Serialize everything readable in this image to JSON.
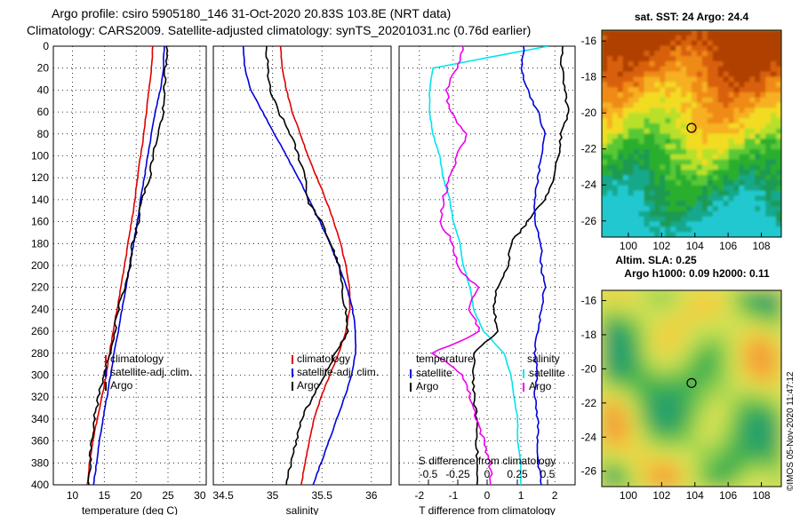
{
  "header": {
    "title_line1": "Argo profile: csiro 5905180_146 31-Oct-2020 20.83S 103.8E (NRT data)",
    "title_line2": "Climatology: CARS2009. Satellite-adjusted climatology: synTS_20201031.nc (0.76d earlier)"
  },
  "stamp": "©IMOS 05-Nov-2020 11:47:12",
  "colors": {
    "climatology": "#e00000",
    "satellite": "#0000dd",
    "argo": "#000000",
    "cyan": "#00e5ee",
    "magenta": "#ee00ee"
  },
  "chart_data": [
    {
      "type": "line",
      "name": "temperature-profile",
      "xlabel": "temperature (deg C)",
      "ylabel": "",
      "xlim": [
        7,
        31
      ],
      "ylim": [
        400,
        0
      ],
      "x_ticks": [
        10,
        15,
        20,
        25,
        30
      ],
      "y_ticks": [
        0,
        20,
        40,
        60,
        80,
        100,
        120,
        140,
        160,
        180,
        200,
        220,
        240,
        260,
        280,
        300,
        320,
        340,
        360,
        380,
        400
      ],
      "legend": [
        "climatology",
        "satellite-adj. clim.",
        "Argo"
      ],
      "series": [
        {
          "name": "climatology",
          "color": "#e00000",
          "x": [
            22.6,
            22.4,
            22.0,
            21.6,
            21.2,
            20.7,
            20.2,
            19.8,
            19.3,
            18.7,
            18.2,
            17.6,
            17.0,
            16.4,
            15.8,
            15.3,
            14.6,
            13.9,
            13.2,
            12.7,
            12.3
          ],
          "y": [
            0,
            20,
            40,
            60,
            80,
            100,
            120,
            140,
            160,
            180,
            200,
            220,
            240,
            260,
            280,
            300,
            320,
            340,
            360,
            380,
            400
          ]
        },
        {
          "name": "satellite-adj. clim.",
          "color": "#0000dd",
          "x": [
            24.4,
            24.3,
            23.8,
            23.0,
            22.4,
            21.8,
            21.3,
            20.7,
            20.2,
            19.6,
            19.0,
            18.4,
            17.8,
            17.2,
            16.5,
            16.0,
            15.4,
            14.8,
            14.2,
            13.8,
            13.3
          ],
          "y": [
            0,
            20,
            40,
            60,
            80,
            100,
            120,
            140,
            160,
            180,
            200,
            220,
            240,
            260,
            280,
            300,
            320,
            340,
            360,
            380,
            400
          ]
        },
        {
          "name": "Argo",
          "color": "#000000",
          "x": [
            24.8,
            24.6,
            24.4,
            24.2,
            23.6,
            22.6,
            22.2,
            20.8,
            20.4,
            19.4,
            19.0,
            18.2,
            17.2,
            16.6,
            15.8,
            14.9,
            14.1,
            13.4,
            13.0,
            12.8,
            12.6
          ],
          "y": [
            0,
            20,
            40,
            60,
            80,
            100,
            120,
            140,
            160,
            180,
            200,
            220,
            240,
            260,
            280,
            300,
            320,
            340,
            360,
            380,
            400
          ]
        }
      ]
    },
    {
      "type": "line",
      "name": "salinity-profile",
      "xlabel": "salinity",
      "xlim": [
        34.4,
        36.2
      ],
      "ylim": [
        400,
        0
      ],
      "x_ticks": [
        34.5,
        35,
        35.5,
        36
      ],
      "x_tick_labels": [
        "34.5",
        "35",
        "35.5",
        "36"
      ],
      "legend": [
        "climatology",
        "satellite-adj. clim.",
        "Argo"
      ],
      "series": [
        {
          "name": "climatology",
          "color": "#e00000",
          "x": [
            35.08,
            35.1,
            35.14,
            35.2,
            35.28,
            35.36,
            35.45,
            35.54,
            35.62,
            35.69,
            35.74,
            35.78,
            35.78,
            35.74,
            35.67,
            35.58,
            35.49,
            35.42,
            35.37,
            35.33,
            35.29
          ],
          "y": [
            0,
            20,
            40,
            60,
            80,
            100,
            120,
            140,
            160,
            180,
            200,
            220,
            240,
            260,
            280,
            300,
            320,
            340,
            360,
            380,
            400
          ]
        },
        {
          "name": "satellite-adj. clim.",
          "color": "#0000dd",
          "x": [
            34.7,
            34.72,
            34.78,
            34.9,
            35.02,
            35.14,
            35.26,
            35.37,
            35.48,
            35.58,
            35.67,
            35.75,
            35.81,
            35.84,
            35.84,
            35.8,
            35.73,
            35.65,
            35.57,
            35.49,
            35.41
          ],
          "y": [
            0,
            20,
            40,
            60,
            80,
            100,
            120,
            140,
            160,
            180,
            200,
            220,
            240,
            260,
            280,
            300,
            320,
            340,
            360,
            380,
            400
          ]
        },
        {
          "name": "Argo",
          "color": "#000000",
          "x": [
            34.93,
            34.95,
            34.97,
            35.06,
            35.18,
            35.26,
            35.34,
            35.35,
            35.49,
            35.59,
            35.67,
            35.7,
            35.74,
            35.76,
            35.64,
            35.52,
            35.4,
            35.3,
            35.24,
            35.19,
            35.14
          ],
          "y": [
            0,
            20,
            40,
            60,
            80,
            100,
            120,
            140,
            160,
            180,
            200,
            220,
            240,
            260,
            280,
            300,
            320,
            340,
            360,
            380,
            400
          ]
        }
      ]
    },
    {
      "type": "line",
      "name": "difference-profile",
      "xlabel": "T difference from climatology",
      "xlabel_top": "S difference from climatology",
      "xlim": [
        -2.6,
        2.6
      ],
      "ylim": [
        400,
        0
      ],
      "x_ticks": [
        -2,
        -1,
        0,
        1,
        2
      ],
      "x_tick_labels": [
        "-2",
        "-1",
        "0",
        "1",
        "2"
      ],
      "s_ticks": [
        -0.5,
        -0.25,
        0,
        0.25,
        0.5
      ],
      "s_tick_labels": [
        "-0.5",
        "-0.25",
        "0",
        "0.25",
        "0.5"
      ],
      "legend_temperature_title": "temperature",
      "legend_salinity_title": "salinity",
      "legend_temperature": [
        "satellite",
        "Argo"
      ],
      "legend_salinity": [
        "satellite",
        "Argo"
      ],
      "series": [
        {
          "name": "T satellite",
          "color": "#00e5ee",
          "x": [
            1.8,
            -1.6,
            -1.7,
            -1.7,
            -1.6,
            -1.4,
            -1.3,
            -1.1,
            -1.0,
            -0.8,
            -0.7,
            -0.5,
            -0.4,
            -0.1,
            0.5,
            0.7,
            0.8,
            0.9,
            0.9,
            1.0,
            1.0
          ],
          "y": [
            0,
            20,
            40,
            60,
            80,
            100,
            120,
            140,
            160,
            180,
            200,
            220,
            240,
            260,
            280,
            300,
            320,
            340,
            360,
            380,
            400
          ]
        },
        {
          "name": "T Argo",
          "color": "#000000",
          "x": [
            2.2,
            2.2,
            2.3,
            2.4,
            2.2,
            2.1,
            2.0,
            1.7,
            1.2,
            0.7,
            0.6,
            0.3,
            0.2,
            0.3,
            -0.4,
            -0.4,
            -0.4,
            -0.3,
            -0.3,
            -0.3,
            -0.3
          ],
          "y": [
            0,
            20,
            40,
            60,
            80,
            100,
            120,
            140,
            160,
            180,
            200,
            220,
            240,
            260,
            280,
            300,
            320,
            340,
            360,
            380,
            400
          ]
        },
        {
          "name": "S satellite",
          "color": "#0000dd",
          "x": [
            1.1,
            1.0,
            1.2,
            1.5,
            1.7,
            1.6,
            1.5,
            1.4,
            1.4,
            1.6,
            1.6,
            1.7,
            1.6,
            1.5,
            1.4,
            1.5,
            1.4,
            1.5,
            1.5,
            1.5,
            1.6
          ],
          "y": [
            0,
            20,
            40,
            60,
            80,
            100,
            120,
            140,
            160,
            180,
            200,
            220,
            240,
            260,
            280,
            300,
            320,
            340,
            360,
            380,
            400
          ]
        },
        {
          "name": "S Argo",
          "color": "#ee00ee",
          "x": [
            -0.7,
            -0.9,
            -1.2,
            -1.1,
            -0.6,
            -0.9,
            -1.1,
            -1.3,
            -1.4,
            -1.0,
            -0.9,
            -0.3,
            -0.5,
            -0.2,
            -1.6,
            -0.7,
            -0.5,
            -0.3,
            -0.1,
            0.1,
            0.1
          ],
          "y": [
            0,
            20,
            40,
            60,
            80,
            100,
            120,
            140,
            160,
            180,
            200,
            220,
            240,
            260,
            280,
            300,
            320,
            340,
            360,
            380,
            400
          ]
        }
      ]
    },
    {
      "type": "heatmap",
      "name": "sst-map",
      "title": "sat. SST: 24 Argo: 24.4",
      "x_ticks": [
        100,
        102,
        104,
        106,
        108
      ],
      "y_ticks": [
        -16,
        -18,
        -20,
        -22,
        -24,
        -26
      ],
      "y_tick_labels": [
        "-16",
        "-18",
        "-20",
        "-22",
        "-24",
        "-26"
      ],
      "xlim": [
        98.4,
        109.2
      ],
      "ylim": [
        -26.9,
        -15.4
      ],
      "marker": {
        "lon": 103.8,
        "lat": -20.83
      }
    },
    {
      "type": "heatmap",
      "name": "sla-map",
      "title": "Altim. SLA: 0.25",
      "subtitle": "Argo h1000: 0.09 h2000: 0.11",
      "x_ticks": [
        100,
        102,
        104,
        106,
        108
      ],
      "y_ticks": [
        -16,
        -18,
        -20,
        -22,
        -24,
        -26
      ],
      "y_tick_labels": [
        "-16",
        "-18",
        "-20",
        "-22",
        "-24",
        "-26"
      ],
      "xlim": [
        98.4,
        109.2
      ],
      "ylim": [
        -26.9,
        -15.4
      ],
      "marker": {
        "lon": 103.8,
        "lat": -20.83
      }
    }
  ]
}
